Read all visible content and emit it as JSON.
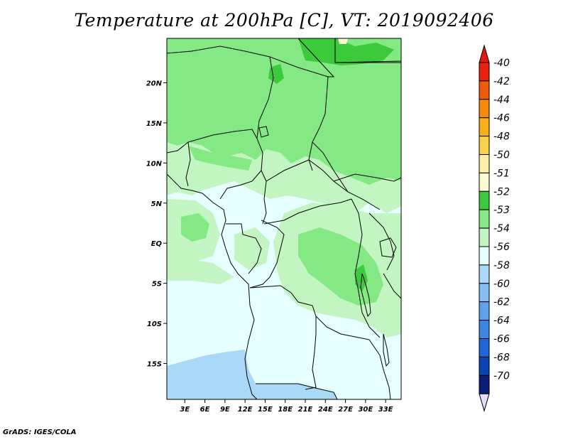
{
  "title": "Temperature at 200hPa [C], VT: 2019092406",
  "credit": "GrADS: IGES/COLA",
  "map": {
    "lon_range": [
      0,
      35
    ],
    "lat_range": [
      -20,
      25
    ],
    "lat_ticks": [
      "20N",
      "15N",
      "10N",
      "5N",
      "EQ",
      "5S",
      "10S",
      "15S"
    ],
    "lon_ticks": [
      "3E",
      "6E",
      "9E",
      "12E",
      "15E",
      "18E",
      "21E",
      "24E",
      "27E",
      "30E",
      "33E"
    ]
  },
  "legend": {
    "labels": [
      "-40",
      "-42",
      "-44",
      "-46",
      "-48",
      "-50",
      "-51",
      "-52",
      "-53",
      "-54",
      "-56",
      "-58",
      "-60",
      "-62",
      "-64",
      "-66",
      "-68",
      "-70"
    ],
    "colors": [
      "#e8200e",
      "#f05a0a",
      "#f58a0c",
      "#f9ae1c",
      "#fbd04a",
      "#fdf0a6",
      "#fbfccf",
      "#3cc93c",
      "#84e884",
      "#c2f5c2",
      "#e6ffff",
      "#aad8f7",
      "#86bdf2",
      "#5fa2ec",
      "#3b86e3",
      "#1f66d6",
      "#0b44b4",
      "#0a1d78"
    ],
    "top_arrow_color": "#e21a0c",
    "bottom_arrow_color": "#e6ddf6"
  },
  "field_colors": {
    "below_-56": "#aad8f7",
    "-56_to_-54": "#e6ffff",
    "-54_to_-53": "#c2f5c2",
    "-53_to_-52": "#84e884",
    "-52_to_-51": "#3cc93c",
    "-51_to_-50": "#fbfccf"
  }
}
